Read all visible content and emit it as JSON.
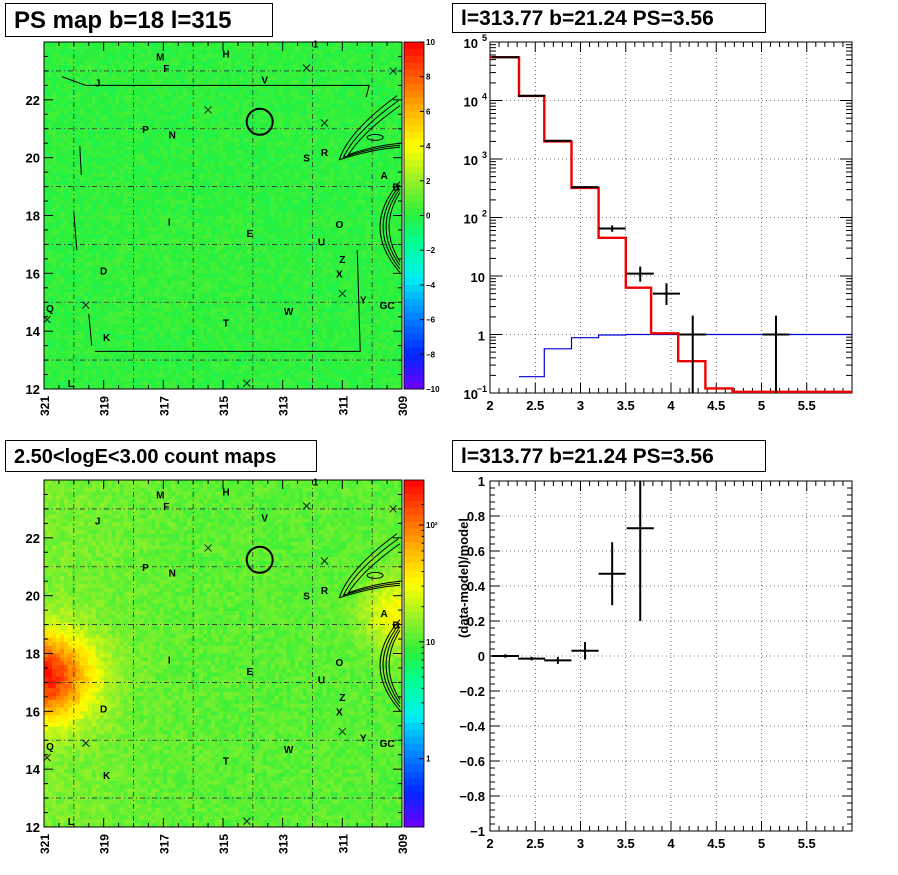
{
  "titles": {
    "tl": "PS map b=18 l=315",
    "tr": "l=313.77 b=21.24 PS=3.56",
    "bl": "2.50<logE<3.00 count maps",
    "br": "l=313.77 b=21.24 PS=3.56"
  },
  "map_axes": {
    "x_ticks": [
      {
        "v": 321,
        "label": "321"
      },
      {
        "v": 319,
        "label": "319"
      },
      {
        "v": 317,
        "label": "317"
      },
      {
        "v": 315,
        "label": "315"
      },
      {
        "v": 313,
        "label": "313"
      },
      {
        "v": 311,
        "label": "311"
      },
      {
        "v": 309,
        "label": "309"
      }
    ],
    "y_ticks": [
      {
        "v": 12,
        "label": "12"
      },
      {
        "v": 14,
        "label": "14"
      },
      {
        "v": 16,
        "label": "16"
      },
      {
        "v": 18,
        "label": "18"
      },
      {
        "v": 20,
        "label": "20"
      },
      {
        "v": 22,
        "label": "22"
      }
    ],
    "xlim": [
      321,
      309
    ],
    "ylim": [
      12,
      24
    ]
  },
  "sources": [
    {
      "label": "M",
      "l": 317.1,
      "b": 23.5
    },
    {
      "label": "F",
      "l": 316.9,
      "b": 23.1
    },
    {
      "label": "H",
      "l": 314.9,
      "b": 23.6
    },
    {
      "label": "1",
      "l": 311.9,
      "b": 23.95
    },
    {
      "label": "J",
      "l": 319.2,
      "b": 22.6
    },
    {
      "label": "V",
      "l": 313.6,
      "b": 22.7
    },
    {
      "label": "P",
      "l": 317.6,
      "b": 21.0
    },
    {
      "label": "N",
      "l": 316.7,
      "b": 20.8
    },
    {
      "label": "S",
      "l": 312.2,
      "b": 20.0
    },
    {
      "label": "R",
      "l": 311.6,
      "b": 20.2
    },
    {
      "label": "A",
      "l": 309.6,
      "b": 19.4
    },
    {
      "label": "B",
      "l": 309.2,
      "b": 19.0
    },
    {
      "label": "I",
      "l": 316.8,
      "b": 17.8
    },
    {
      "label": "E",
      "l": 314.1,
      "b": 17.4
    },
    {
      "label": "O",
      "l": 311.1,
      "b": 17.7
    },
    {
      "label": "U",
      "l": 311.7,
      "b": 17.1
    },
    {
      "label": "Z",
      "l": 311.0,
      "b": 16.5
    },
    {
      "label": "D",
      "l": 319.0,
      "b": 16.1
    },
    {
      "label": "X",
      "l": 311.1,
      "b": 16.0
    },
    {
      "label": "Y",
      "l": 310.3,
      "b": 15.1
    },
    {
      "label": "GC",
      "l": 309.5,
      "b": 14.9
    },
    {
      "label": "Q",
      "l": 320.8,
      "b": 14.8
    },
    {
      "label": "W",
      "l": 312.8,
      "b": 14.7
    },
    {
      "label": "T",
      "l": 314.9,
      "b": 14.3
    },
    {
      "label": "K",
      "l": 318.9,
      "b": 13.8
    },
    {
      "label": "L",
      "l": 320.1,
      "b": 12.2
    }
  ],
  "crosses": [
    {
      "l": 315.5,
      "b": 21.65
    },
    {
      "l": 312.2,
      "b": 23.1
    },
    {
      "l": 311.6,
      "b": 21.2
    },
    {
      "l": 309.3,
      "b": 23.0
    },
    {
      "l": 319.6,
      "b": 14.9
    },
    {
      "l": 320.9,
      "b": 14.4
    },
    {
      "l": 311.0,
      "b": 15.3
    },
    {
      "l": 314.2,
      "b": 12.2
    }
  ],
  "circle": {
    "l": 313.77,
    "b": 21.24
  },
  "colorbar_tl": {
    "ticks": [
      {
        "v": 10,
        "label": "10"
      },
      {
        "v": 8,
        "label": "8"
      },
      {
        "v": 6,
        "label": "6"
      },
      {
        "v": 4,
        "label": "4"
      },
      {
        "v": 2,
        "label": "2"
      },
      {
        "v": 0,
        "label": "0"
      },
      {
        "v": -2,
        "label": "−2"
      },
      {
        "v": -4,
        "label": "−4"
      },
      {
        "v": -6,
        "label": "−6"
      },
      {
        "v": -8,
        "label": "−8"
      },
      {
        "v": -10,
        "label": "−10"
      }
    ]
  },
  "colorbar_bl": {
    "ticks": [
      {
        "v": 100,
        "label": "10²"
      },
      {
        "v": 10,
        "label": "10"
      },
      {
        "v": 1,
        "label": "1"
      }
    ]
  },
  "chart_data": [
    {
      "type": "heatmap",
      "title": "PS map b=18 l=315",
      "xlim": [
        321,
        309
      ],
      "ylim": [
        12,
        24
      ],
      "colorbar_range": [
        -10,
        10
      ]
    },
    {
      "type": "line",
      "title": "l=313.77 b=21.24 PS=3.56",
      "xlim": [
        2,
        6
      ],
      "ylim": [
        0.1,
        100000
      ],
      "yscale": "log",
      "grid": true,
      "x_ticks": [
        {
          "v": 2,
          "label": "2"
        },
        {
          "v": 2.5,
          "label": "2.5"
        },
        {
          "v": 3,
          "label": "3"
        },
        {
          "v": 3.5,
          "label": "3.5"
        },
        {
          "v": 4,
          "label": "4"
        },
        {
          "v": 4.5,
          "label": "4.5"
        },
        {
          "v": 5,
          "label": "5"
        },
        {
          "v": 5.5,
          "label": "5.5"
        }
      ],
      "y_ticks": [
        {
          "v": 0.1,
          "label": "10",
          "sup": "−1"
        },
        {
          "v": 1,
          "label": "1"
        },
        {
          "v": 10,
          "label": "10"
        },
        {
          "v": 100,
          "label": "10",
          "sup": "2"
        },
        {
          "v": 1000,
          "label": "10",
          "sup": "3"
        },
        {
          "v": 10000,
          "label": "10",
          "sup": "4"
        },
        {
          "v": 100000,
          "label": "10",
          "sup": "5"
        }
      ],
      "model_total_steps": [
        {
          "x0": 2.0,
          "x1": 2.32,
          "y": 55000
        },
        {
          "x0": 2.32,
          "x1": 2.6,
          "y": 12000
        },
        {
          "x0": 2.6,
          "x1": 2.9,
          "y": 2000
        },
        {
          "x0": 2.9,
          "x1": 3.2,
          "y": 320
        },
        {
          "x0": 3.2,
          "x1": 3.5,
          "y": 45
        },
        {
          "x0": 3.5,
          "x1": 3.78,
          "y": 6.3
        },
        {
          "x0": 3.78,
          "x1": 4.08,
          "y": 1.05
        },
        {
          "x0": 4.08,
          "x1": 4.38,
          "y": 0.35
        },
        {
          "x0": 4.38,
          "x1": 4.68,
          "y": 0.12
        },
        {
          "x0": 4.68,
          "x1": 6.0,
          "y": 0.105
        }
      ],
      "source_model_steps": [
        {
          "x0": 2.32,
          "x1": 2.6,
          "y": 0.19
        },
        {
          "x0": 2.6,
          "x1": 2.9,
          "y": 0.57
        },
        {
          "x0": 2.9,
          "x1": 3.2,
          "y": 0.88
        },
        {
          "x0": 3.2,
          "x1": 3.5,
          "y": 0.98
        },
        {
          "x0": 3.5,
          "x1": 6.0,
          "y": 1.0
        }
      ],
      "data_points": [
        {
          "x": 2.17,
          "y": 55000,
          "xerr": 0.15,
          "ylo": 54000,
          "yhi": 56000
        },
        {
          "x": 2.46,
          "y": 12000,
          "xerr": 0.15,
          "ylo": 11800,
          "yhi": 12200
        },
        {
          "x": 2.75,
          "y": 2050,
          "xerr": 0.15,
          "ylo": 2000,
          "yhi": 2100
        },
        {
          "x": 3.05,
          "y": 330,
          "xerr": 0.15,
          "ylo": 315,
          "yhi": 345
        },
        {
          "x": 3.35,
          "y": 65,
          "xerr": 0.15,
          "ylo": 57,
          "yhi": 73
        },
        {
          "x": 3.66,
          "y": 11,
          "xerr": 0.15,
          "ylo": 8,
          "yhi": 14.5
        },
        {
          "x": 3.95,
          "y": 5,
          "xerr": 0.15,
          "ylo": 3.2,
          "yhi": 7.5
        },
        {
          "x": 4.24,
          "y": 1,
          "xerr": 0.15,
          "ylo": 0.1,
          "yhi": 2.1
        },
        {
          "x": 5.16,
          "y": 1,
          "xerr": 0.15,
          "ylo": 0.1,
          "yhi": 2.1
        }
      ]
    },
    {
      "type": "heatmap",
      "title": "2.50<logE<3.00 count maps",
      "xlim": [
        321,
        309
      ],
      "ylim": [
        12,
        24
      ],
      "colorbar_scale": "log"
    },
    {
      "type": "scatter",
      "title": "l=313.77 b=21.24 PS=3.56",
      "xlim": [
        2,
        6
      ],
      "ylim": [
        -1,
        1
      ],
      "grid": true,
      "ylabel": "(data-model)/model",
      "x_ticks": [
        {
          "v": 2,
          "label": "2"
        },
        {
          "v": 2.5,
          "label": "2.5"
        },
        {
          "v": 3,
          "label": "3"
        },
        {
          "v": 3.5,
          "label": "3.5"
        },
        {
          "v": 4,
          "label": "4"
        },
        {
          "v": 4.5,
          "label": "4.5"
        },
        {
          "v": 5,
          "label": "5"
        },
        {
          "v": 5.5,
          "label": "5.5"
        }
      ],
      "y_ticks": [
        {
          "v": 1,
          "label": "1"
        },
        {
          "v": 0.8,
          "label": "0.8"
        },
        {
          "v": 0.6,
          "label": "0.6"
        },
        {
          "v": 0.4,
          "label": "0.4"
        },
        {
          "v": 0.2,
          "label": "0.2"
        },
        {
          "v": 0,
          "label": "0"
        },
        {
          "v": -0.2,
          "label": "−0.2"
        },
        {
          "v": -0.4,
          "label": "−0.4"
        },
        {
          "v": -0.6,
          "label": "−0.6"
        },
        {
          "v": -0.8,
          "label": "−0.8"
        },
        {
          "v": -1,
          "label": "−1"
        }
      ],
      "data_points": [
        {
          "x": 2.17,
          "y": 0.0,
          "xerr": 0.15,
          "ylo": -0.01,
          "yhi": 0.01
        },
        {
          "x": 2.46,
          "y": -0.015,
          "xerr": 0.15,
          "ylo": -0.025,
          "yhi": -0.005
        },
        {
          "x": 2.75,
          "y": -0.025,
          "xerr": 0.15,
          "ylo": -0.045,
          "yhi": -0.005
        },
        {
          "x": 3.05,
          "y": 0.03,
          "xerr": 0.15,
          "ylo": -0.02,
          "yhi": 0.08
        },
        {
          "x": 3.35,
          "y": 0.47,
          "xerr": 0.15,
          "ylo": 0.29,
          "yhi": 0.65
        },
        {
          "x": 3.66,
          "y": 0.73,
          "xerr": 0.15,
          "ylo": 0.2,
          "yhi": 1.0
        }
      ]
    }
  ]
}
